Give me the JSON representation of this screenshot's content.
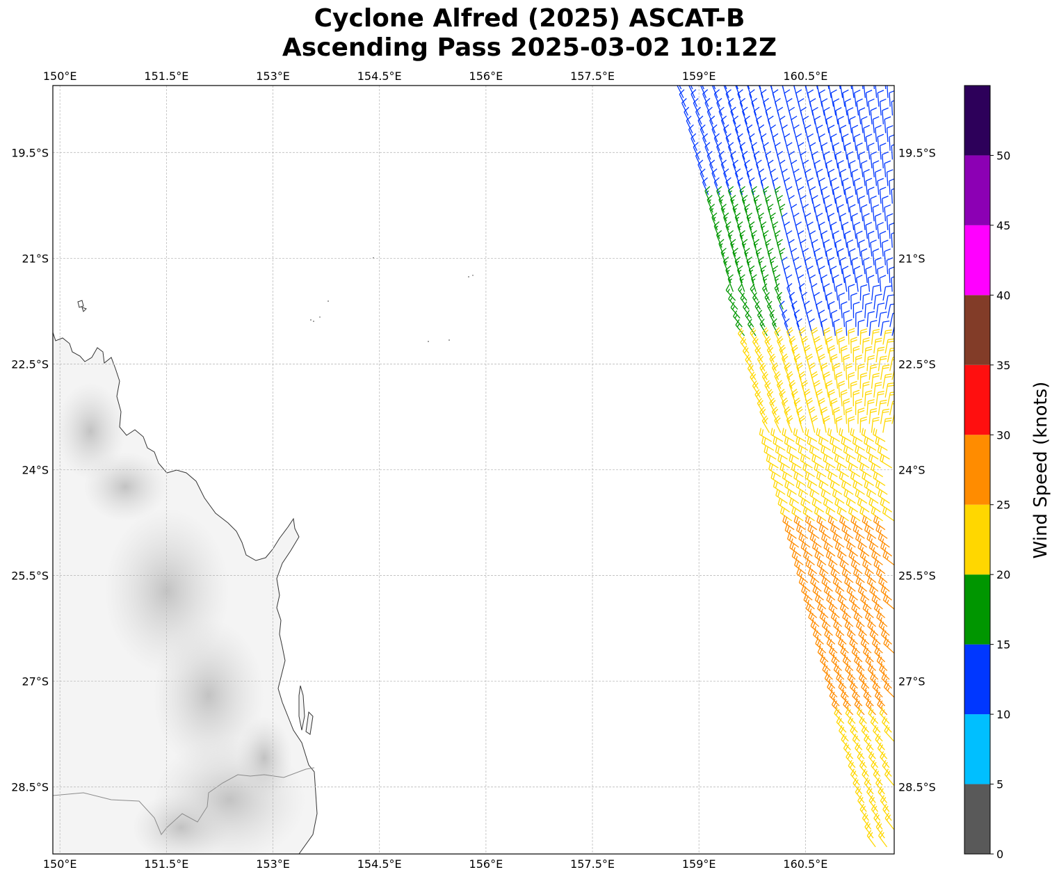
{
  "title": {
    "line1": "Cyclone Alfred (2025) ASCAT-B",
    "line2": "Ascending Pass 2025-03-02 10:12Z"
  },
  "map": {
    "lon_range": [
      149.9,
      161.75
    ],
    "lat_range": [
      -29.45,
      -18.55
    ],
    "lon_ticks": [
      150.0,
      151.5,
      153.0,
      154.5,
      156.0,
      157.5,
      159.0,
      160.5
    ],
    "lon_tick_labels": [
      "150°E",
      "151.5°E",
      "153°E",
      "154.5°E",
      "156°E",
      "157.5°E",
      "159°E",
      "160.5°E"
    ],
    "lat_ticks": [
      -19.5,
      -21.0,
      -22.5,
      -24.0,
      -25.5,
      -27.0,
      -28.5
    ],
    "lat_tick_labels": [
      "19.5°S",
      "21°S",
      "22.5°S",
      "24°S",
      "25.5°S",
      "27°S",
      "28.5°S"
    ],
    "grid": true
  },
  "colorbar": {
    "label": "Wind Speed (knots)",
    "bins": [
      {
        "min": 0,
        "max": 5,
        "color": "#595959"
      },
      {
        "min": 5,
        "max": 10,
        "color": "#00bfff"
      },
      {
        "min": 10,
        "max": 15,
        "color": "#0037ff"
      },
      {
        "min": 15,
        "max": 20,
        "color": "#009600"
      },
      {
        "min": 20,
        "max": 25,
        "color": "#ffd700"
      },
      {
        "min": 25,
        "max": 30,
        "color": "#ff8c00"
      },
      {
        "min": 30,
        "max": 35,
        "color": "#ff0f0f"
      },
      {
        "min": 35,
        "max": 40,
        "color": "#823c28"
      },
      {
        "min": 40,
        "max": 45,
        "color": "#ff00ff"
      },
      {
        "min": 45,
        "max": 50,
        "color": "#8c00b4"
      },
      {
        "min": 50,
        "max": 55,
        "color": "#2d005a"
      }
    ],
    "tick_labels": [
      "0",
      "5",
      "10",
      "15",
      "20",
      "25",
      "30",
      "35",
      "40",
      "45",
      "50"
    ]
  },
  "chart_data": {
    "type": "wind_barbs",
    "wind_regions": [
      {
        "lat_range": [
          -20.1,
          -18.55
        ],
        "speed_knots": 13,
        "color": "#0037ff"
      },
      {
        "lat_range": [
          -22.2,
          -20.1
        ],
        "speed_knots": 17,
        "color": "#009600",
        "note_lon_max": 160.2
      },
      {
        "lat_range": [
          -23.5,
          -22.2
        ],
        "speed_knots": 22,
        "color": "#ffd700"
      },
      {
        "lat_range": [
          -27.5,
          -24.8
        ],
        "speed_knots": 27,
        "color": "#ff8c00"
      },
      {
        "lat_range": [
          -29.45,
          -27.5
        ],
        "speed_knots": 23,
        "color": "#ffd700"
      }
    ]
  }
}
